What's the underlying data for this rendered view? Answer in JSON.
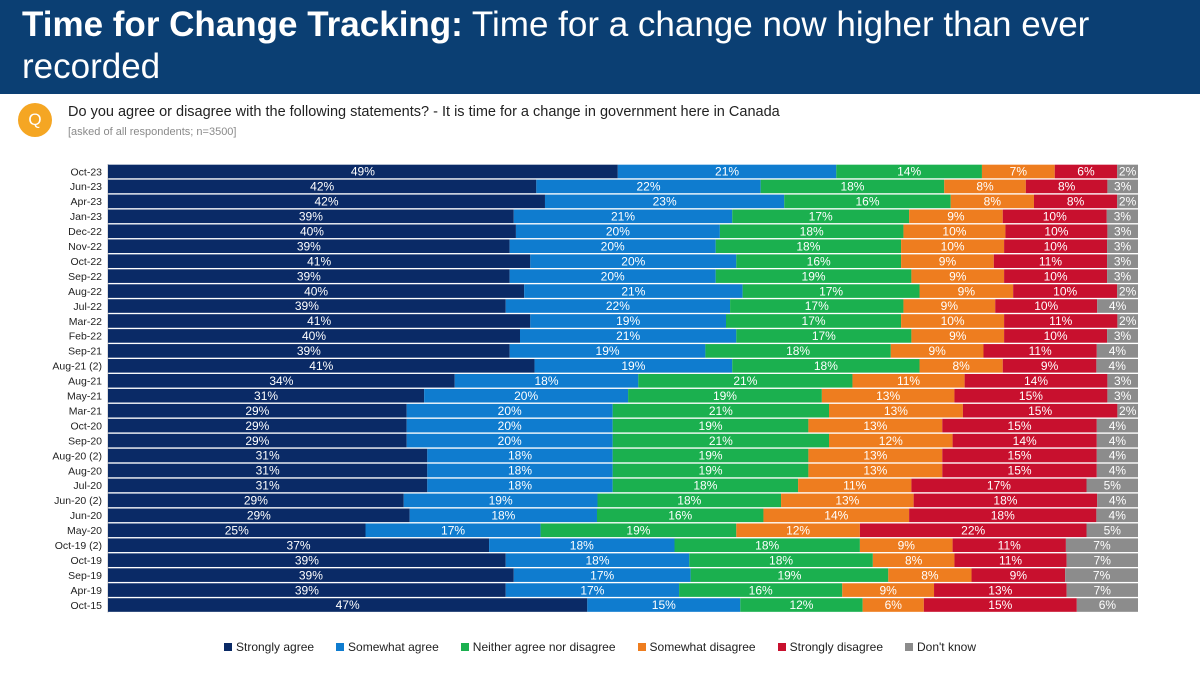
{
  "header": {
    "title_bold": "Time for Change Tracking:",
    "title_rest": " Time for a change now higher than ever recorded"
  },
  "question": {
    "badge": "Q",
    "text": "Do you agree or disagree with the following statements? - It is time for a change in government here in Canada",
    "note": "[asked of all respondents; n=3500]"
  },
  "chart_data": {
    "type": "bar",
    "orientation": "horizontal",
    "stacked": "100%",
    "legend_position": "bottom",
    "categories": [
      "Oct-23",
      "Jun-23",
      "Apr-23",
      "Jan-23",
      "Dec-22",
      "Nov-22",
      "Oct-22",
      "Sep-22",
      "Aug-22",
      "Jul-22",
      "Mar-22",
      "Feb-22",
      "Sep-21",
      "Aug-21 (2)",
      "Aug-21",
      "May-21",
      "Mar-21",
      "Oct-20",
      "Sep-20",
      "Aug-20 (2)",
      "Aug-20",
      "Jul-20",
      "Jun-20 (2)",
      "Jun-20",
      "May-20",
      "Oct-19 (2)",
      "Oct-19",
      "Sep-19",
      "Apr-19",
      "Oct-15"
    ],
    "series": [
      {
        "name": "Strongly agree",
        "color": "#0a2a66",
        "values": [
          49,
          42,
          42,
          39,
          40,
          39,
          41,
          39,
          40,
          39,
          41,
          40,
          39,
          41,
          34,
          31,
          29,
          29,
          29,
          31,
          31,
          31,
          29,
          29,
          25,
          37,
          39,
          39,
          39,
          47
        ]
      },
      {
        "name": "Somewhat agree",
        "color": "#0f7ccf",
        "values": [
          21,
          22,
          23,
          21,
          20,
          20,
          20,
          20,
          21,
          22,
          19,
          21,
          19,
          19,
          18,
          20,
          20,
          20,
          20,
          18,
          18,
          18,
          19,
          18,
          17,
          18,
          18,
          17,
          17,
          15
        ]
      },
      {
        "name": "Neither agree nor disagree",
        "color": "#1bb04f",
        "values": [
          14,
          18,
          16,
          17,
          18,
          18,
          16,
          19,
          17,
          17,
          17,
          17,
          18,
          18,
          21,
          19,
          21,
          19,
          21,
          19,
          19,
          18,
          18,
          16,
          19,
          18,
          18,
          19,
          16,
          12
        ]
      },
      {
        "name": "Somewhat disagree",
        "color": "#ee7d1f",
        "values": [
          7,
          8,
          8,
          9,
          10,
          10,
          9,
          9,
          9,
          9,
          10,
          9,
          9,
          8,
          11,
          13,
          13,
          13,
          12,
          13,
          13,
          11,
          13,
          14,
          12,
          9,
          8,
          8,
          9,
          6
        ]
      },
      {
        "name": "Strongly disagree",
        "color": "#c8102e",
        "values": [
          6,
          8,
          8,
          10,
          10,
          10,
          11,
          10,
          10,
          10,
          11,
          10,
          11,
          9,
          14,
          15,
          15,
          15,
          14,
          15,
          15,
          17,
          18,
          18,
          22,
          11,
          11,
          9,
          13,
          15
        ]
      },
      {
        "name": "Don't know",
        "color": "#8c8c8c",
        "values": [
          2,
          3,
          2,
          3,
          3,
          3,
          3,
          3,
          2,
          4,
          2,
          3,
          4,
          4,
          3,
          3,
          2,
          4,
          4,
          4,
          4,
          5,
          4,
          4,
          5,
          7,
          7,
          7,
          7,
          6
        ]
      }
    ]
  }
}
